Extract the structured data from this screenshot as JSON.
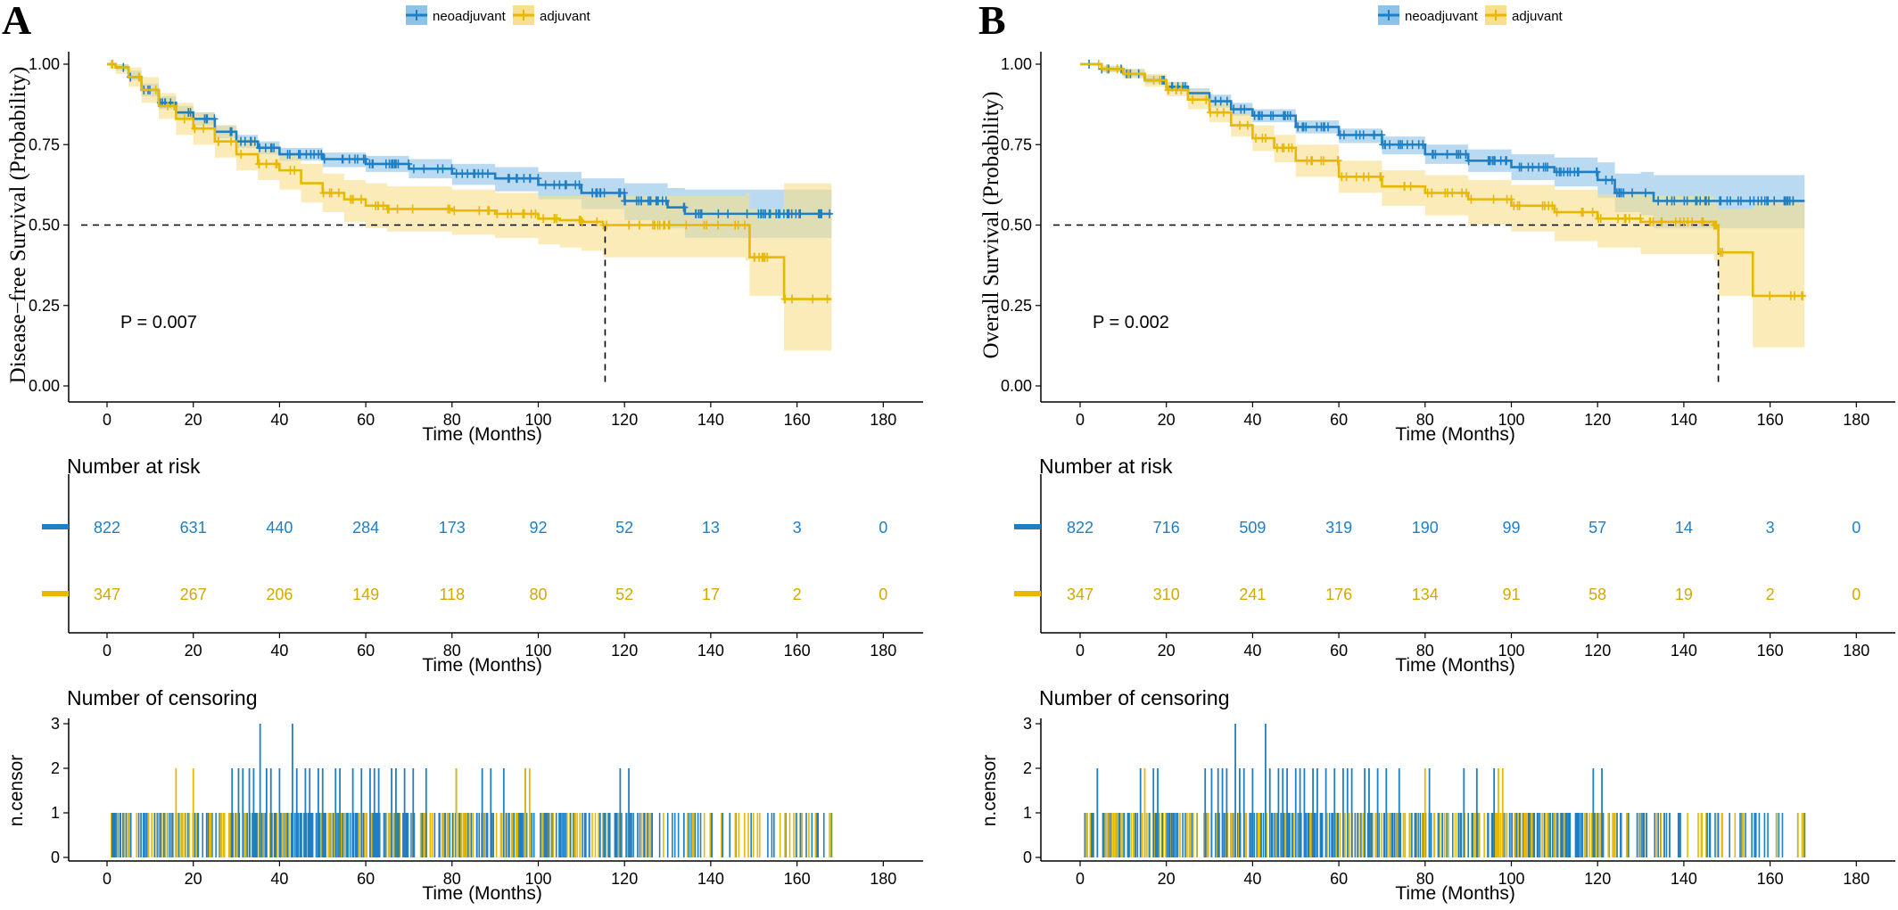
{
  "legend": {
    "items": [
      "neoadjuvant",
      "adjuvant"
    ]
  },
  "colors": {
    "neoadjuvant": "#1f7fc4",
    "neoadjuvant_band": "#8ec3e8",
    "adjuvant": "#e8b800",
    "adjuvant_band": "#f7df8d",
    "median_line": "#000000"
  },
  "chart_data": [
    {
      "panel": "A",
      "type": "line",
      "subtype": "kaplan-meier",
      "ylabel": "Disease−free Survival (Probability)",
      "xlabel": "Time (Months)",
      "xlim": [
        -9,
        190
      ],
      "ylim": [
        0,
        1.0
      ],
      "x_ticks": [
        0,
        20,
        40,
        60,
        80,
        100,
        120,
        140,
        160,
        180
      ],
      "y_ticks": [
        "0.00",
        "0.25",
        "0.50",
        "0.75",
        "1.00"
      ],
      "y_tick_values": [
        0,
        0.25,
        0.5,
        0.75,
        1.0
      ],
      "pvalue": "P = 0.007",
      "median_line": {
        "y": 0.5,
        "x_end": 115.5
      },
      "series": [
        {
          "name": "neoadjuvant",
          "x": [
            0,
            2,
            5,
            8,
            12,
            16,
            20,
            25,
            30,
            35,
            40,
            50,
            60,
            70,
            80,
            90,
            100,
            110,
            120,
            130,
            134,
            140,
            150,
            168
          ],
          "y": [
            1.0,
            0.99,
            0.96,
            0.92,
            0.88,
            0.85,
            0.83,
            0.79,
            0.76,
            0.74,
            0.72,
            0.705,
            0.69,
            0.675,
            0.66,
            0.645,
            0.625,
            0.6,
            0.575,
            0.555,
            0.535,
            0.535,
            0.535,
            0.535
          ],
          "lower": [
            1.0,
            0.98,
            0.95,
            0.9,
            0.86,
            0.83,
            0.81,
            0.77,
            0.74,
            0.72,
            0.7,
            0.68,
            0.665,
            0.645,
            0.625,
            0.605,
            0.58,
            0.55,
            0.515,
            0.49,
            0.46,
            0.46,
            0.46,
            0.46
          ],
          "upper": [
            1.0,
            1.0,
            0.98,
            0.94,
            0.9,
            0.87,
            0.85,
            0.81,
            0.78,
            0.76,
            0.74,
            0.725,
            0.715,
            0.705,
            0.69,
            0.68,
            0.665,
            0.645,
            0.63,
            0.615,
            0.61,
            0.61,
            0.61,
            0.61
          ]
        },
        {
          "name": "adjuvant",
          "x": [
            0,
            2,
            5,
            8,
            12,
            16,
            20,
            25,
            30,
            35,
            40,
            45,
            50,
            55,
            60,
            65,
            70,
            80,
            90,
            100,
            105,
            110,
            115,
            148,
            149,
            156,
            157,
            168
          ],
          "y": [
            1.0,
            0.99,
            0.96,
            0.92,
            0.87,
            0.83,
            0.8,
            0.76,
            0.72,
            0.69,
            0.67,
            0.63,
            0.6,
            0.58,
            0.56,
            0.55,
            0.55,
            0.545,
            0.535,
            0.52,
            0.515,
            0.51,
            0.5,
            0.5,
            0.4,
            0.4,
            0.27,
            0.27
          ],
          "lower": [
            1.0,
            0.97,
            0.93,
            0.88,
            0.83,
            0.78,
            0.75,
            0.71,
            0.67,
            0.64,
            0.61,
            0.57,
            0.54,
            0.51,
            0.49,
            0.48,
            0.48,
            0.47,
            0.46,
            0.44,
            0.43,
            0.42,
            0.4,
            0.39,
            0.28,
            0.28,
            0.11,
            0.11
          ],
          "upper": [
            1.0,
            1.0,
            0.99,
            0.96,
            0.91,
            0.88,
            0.85,
            0.81,
            0.77,
            0.74,
            0.72,
            0.69,
            0.66,
            0.64,
            0.63,
            0.62,
            0.62,
            0.61,
            0.6,
            0.59,
            0.59,
            0.59,
            0.59,
            0.6,
            0.55,
            0.55,
            0.63,
            0.63
          ]
        }
      ],
      "risk_table": {
        "title": "Number at risk",
        "xlabel": "Time (Months)",
        "times": [
          0,
          20,
          40,
          60,
          80,
          100,
          120,
          140,
          160,
          180
        ],
        "neoadjuvant": [
          "822",
          "631",
          "440",
          "284",
          "173",
          "92",
          "52",
          "13",
          "3",
          "0"
        ],
        "adjuvant": [
          "347",
          "267",
          "206",
          "149",
          "118",
          "80",
          "52",
          "17",
          "2",
          "0"
        ]
      },
      "censoring": {
        "title": "Number of censoring",
        "ylabel": "n.censor",
        "xlabel": "Time (Months)",
        "y_ticks": [
          "0",
          "1",
          "2",
          "3"
        ],
        "neoadjuvant_twos": [
          29,
          30.5,
          31.5,
          33,
          34,
          37,
          38,
          40,
          44,
          46,
          47,
          49,
          50,
          53,
          54,
          57,
          59,
          61,
          62,
          63,
          66,
          67,
          69,
          71,
          74,
          81,
          87,
          89,
          92,
          97,
          119,
          121
        ],
        "neoadjuvant_threes": [
          35.5,
          43
        ],
        "adjuvant_twos": [
          16,
          20,
          81,
          97,
          98
        ]
      }
    },
    {
      "panel": "B",
      "type": "line",
      "subtype": "kaplan-meier",
      "ylabel": "Overall Survival (Probability)",
      "xlabel": "Time (Months)",
      "xlim": [
        -9,
        190
      ],
      "ylim": [
        0,
        1.0
      ],
      "x_ticks": [
        0,
        20,
        40,
        60,
        80,
        100,
        120,
        140,
        160,
        180
      ],
      "y_ticks": [
        "0.00",
        "0.25",
        "0.50",
        "0.75",
        "1.00"
      ],
      "y_tick_values": [
        0,
        0.25,
        0.5,
        0.75,
        1.0
      ],
      "pvalue": "P = 0.002",
      "median_line": {
        "y": 0.5,
        "x_end": 148
      },
      "series": [
        {
          "name": "neoadjuvant",
          "x": [
            0,
            5,
            10,
            15,
            20,
            25,
            30,
            35,
            40,
            50,
            60,
            70,
            80,
            90,
            100,
            110,
            120,
            124,
            130,
            133,
            150,
            168
          ],
          "y": [
            1.0,
            0.985,
            0.97,
            0.95,
            0.93,
            0.91,
            0.885,
            0.86,
            0.84,
            0.805,
            0.78,
            0.75,
            0.72,
            0.7,
            0.68,
            0.665,
            0.64,
            0.6,
            0.6,
            0.575,
            0.575,
            0.575
          ],
          "lower": [
            1.0,
            0.975,
            0.96,
            0.94,
            0.915,
            0.895,
            0.865,
            0.84,
            0.82,
            0.785,
            0.755,
            0.72,
            0.69,
            0.665,
            0.64,
            0.62,
            0.585,
            0.54,
            0.53,
            0.49,
            0.49,
            0.49
          ],
          "upper": [
            1.0,
            0.995,
            0.985,
            0.965,
            0.945,
            0.925,
            0.905,
            0.88,
            0.86,
            0.825,
            0.8,
            0.775,
            0.75,
            0.735,
            0.72,
            0.71,
            0.695,
            0.66,
            0.665,
            0.655,
            0.655,
            0.655
          ]
        },
        {
          "name": "adjuvant",
          "x": [
            0,
            5,
            10,
            15,
            20,
            25,
            30,
            35,
            40,
            45,
            50,
            60,
            70,
            80,
            90,
            100,
            110,
            120,
            130,
            147,
            148,
            155,
            156,
            168
          ],
          "y": [
            1.0,
            0.985,
            0.97,
            0.95,
            0.92,
            0.89,
            0.85,
            0.81,
            0.77,
            0.74,
            0.7,
            0.65,
            0.62,
            0.6,
            0.58,
            0.56,
            0.54,
            0.52,
            0.51,
            0.5,
            0.415,
            0.415,
            0.28,
            0.28
          ],
          "lower": [
            1.0,
            0.975,
            0.955,
            0.93,
            0.9,
            0.86,
            0.82,
            0.775,
            0.73,
            0.695,
            0.65,
            0.6,
            0.56,
            0.53,
            0.5,
            0.48,
            0.45,
            0.43,
            0.41,
            0.39,
            0.28,
            0.28,
            0.12,
            0.12
          ],
          "upper": [
            1.0,
            0.995,
            0.985,
            0.97,
            0.945,
            0.92,
            0.88,
            0.845,
            0.81,
            0.78,
            0.75,
            0.7,
            0.67,
            0.655,
            0.64,
            0.625,
            0.61,
            0.595,
            0.59,
            0.58,
            0.55,
            0.55,
            0.58,
            0.58
          ]
        }
      ],
      "risk_table": {
        "title": "Number at risk",
        "xlabel": "Time (Months)",
        "times": [
          0,
          20,
          40,
          60,
          80,
          100,
          120,
          140,
          160,
          180
        ],
        "neoadjuvant": [
          "822",
          "716",
          "509",
          "319",
          "190",
          "99",
          "57",
          "14",
          "3",
          "0"
        ],
        "adjuvant": [
          "347",
          "310",
          "241",
          "176",
          "134",
          "91",
          "58",
          "19",
          "2",
          "0"
        ]
      },
      "censoring": {
        "title": "Number of censoring",
        "ylabel": "n.censor",
        "xlabel": "Time (Months)",
        "y_ticks": [
          "0",
          "1",
          "2",
          "3"
        ],
        "neoadjuvant_twos": [
          4,
          14,
          17,
          18,
          29,
          30.5,
          32,
          33,
          34,
          37,
          38,
          40,
          44,
          46,
          47,
          48,
          50,
          51,
          52,
          54,
          55,
          57,
          59,
          61,
          62,
          63,
          66,
          67,
          69,
          71,
          74,
          81,
          89,
          92,
          96,
          119,
          121
        ],
        "neoadjuvant_threes": [
          36,
          43
        ],
        "adjuvant_twos": [
          15,
          80,
          97,
          98
        ]
      }
    }
  ]
}
